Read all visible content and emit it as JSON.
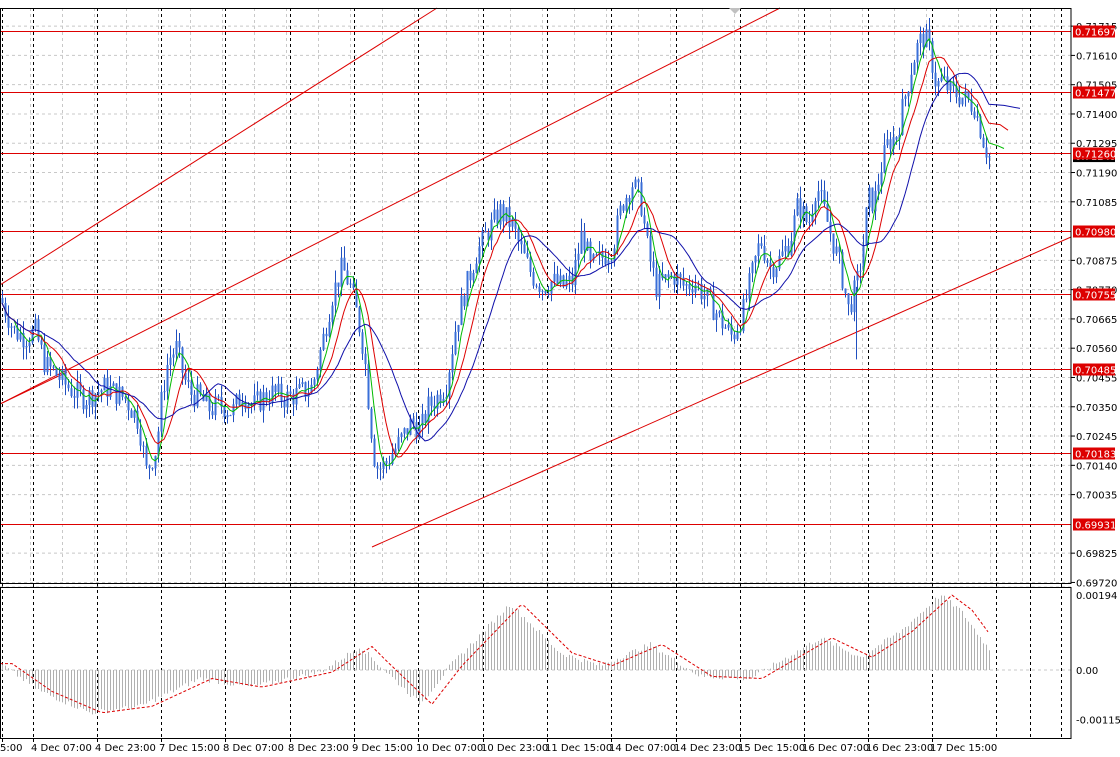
{
  "chart_data": [
    {
      "type": "candlestick",
      "title": "",
      "x_ticks": [
        "5:00",
        "4 Dec 07:00",
        "4 Dec 23:00",
        "7 Dec 15:00",
        "8 Dec 07:00",
        "8 Dec 23:00",
        "9 Dec 15:00",
        "10 Dec 07:00",
        "10 Dec 23:00",
        "11 Dec 15:00",
        "14 Dec 07:00",
        "14 Dec 23:00",
        "15 Dec 15:00",
        "16 Dec 07:00",
        "16 Dec 23:00",
        "17 Dec 15:00"
      ],
      "y_ticks": [
        "0.71715",
        "0.71610",
        "0.71505",
        "0.71400",
        "0.71295",
        "0.71190",
        "0.71085",
        "0.70875",
        "0.70770",
        "0.70665",
        "0.70560",
        "0.70455",
        "0.70350",
        "0.70245",
        "0.70140",
        "0.70035",
        "0.69825",
        "0.69720"
      ],
      "ylim": [
        0.6972,
        0.7179
      ],
      "current_price": "0.71249",
      "levels": [
        {
          "label": "0.71697",
          "value": 0.71697
        },
        {
          "label": "0.71477",
          "value": 0.71477
        },
        {
          "label": "0.71260",
          "value": 0.7126
        },
        {
          "label": "0.70980",
          "value": 0.7098
        },
        {
          "label": "0.70755",
          "value": 0.70755
        },
        {
          "label": "0.70485",
          "value": 0.70485
        },
        {
          "label": "0.70183",
          "value": 0.70183
        },
        {
          "label": "0.69931",
          "value": 0.69931
        }
      ],
      "close_path": [
        [
          0,
          0.7074
        ],
        [
          14,
          0.7062
        ],
        [
          25,
          0.706
        ],
        [
          35,
          0.7062
        ],
        [
          45,
          0.705
        ],
        [
          55,
          0.7047
        ],
        [
          65,
          0.7043
        ],
        [
          75,
          0.704
        ],
        [
          85,
          0.7038
        ],
        [
          95,
          0.704
        ],
        [
          105,
          0.7042
        ],
        [
          115,
          0.704
        ],
        [
          125,
          0.7038
        ],
        [
          138,
          0.703
        ],
        [
          146,
          0.7012
        ],
        [
          150,
          0.7015
        ],
        [
          156,
          0.702
        ],
        [
          162,
          0.704
        ],
        [
          168,
          0.7052
        ],
        [
          176,
          0.7056
        ],
        [
          184,
          0.7045
        ],
        [
          190,
          0.704
        ],
        [
          200,
          0.7038
        ],
        [
          210,
          0.7034
        ],
        [
          220,
          0.7036
        ],
        [
          232,
          0.7033
        ],
        [
          242,
          0.704
        ],
        [
          252,
          0.7035
        ],
        [
          262,
          0.7038
        ],
        [
          272,
          0.704
        ],
        [
          285,
          0.7038
        ],
        [
          300,
          0.704
        ],
        [
          312,
          0.7042
        ],
        [
          322,
          0.7058
        ],
        [
          332,
          0.7075
        ],
        [
          342,
          0.7085
        ],
        [
          350,
          0.7078
        ],
        [
          358,
          0.7066
        ],
        [
          364,
          0.7054
        ],
        [
          370,
          0.703
        ],
        [
          375,
          0.7014
        ],
        [
          380,
          0.7013
        ],
        [
          386,
          0.7015
        ],
        [
          395,
          0.702
        ],
        [
          404,
          0.7025
        ],
        [
          412,
          0.703
        ],
        [
          420,
          0.7026
        ],
        [
          428,
          0.7035
        ],
        [
          436,
          0.7038
        ],
        [
          446,
          0.7043
        ],
        [
          456,
          0.7065
        ],
        [
          466,
          0.7078
        ],
        [
          476,
          0.709
        ],
        [
          488,
          0.7098
        ],
        [
          500,
          0.7105
        ],
        [
          512,
          0.71
        ],
        [
          522,
          0.709
        ],
        [
          532,
          0.7082
        ],
        [
          542,
          0.7078
        ],
        [
          552,
          0.708
        ],
        [
          562,
          0.7078
        ],
        [
          572,
          0.708
        ],
        [
          582,
          0.7098
        ],
        [
          590,
          0.7085
        ],
        [
          600,
          0.7088
        ],
        [
          612,
          0.7092
        ],
        [
          622,
          0.7108
        ],
        [
          632,
          0.7115
        ],
        [
          640,
          0.711
        ],
        [
          648,
          0.709
        ],
        [
          656,
          0.7078
        ],
        [
          664,
          0.708
        ],
        [
          674,
          0.7082
        ],
        [
          684,
          0.7078
        ],
        [
          694,
          0.708
        ],
        [
          704,
          0.7075
        ],
        [
          714,
          0.707
        ],
        [
          722,
          0.7065
        ],
        [
          732,
          0.706
        ],
        [
          742,
          0.7068
        ],
        [
          752,
          0.7083
        ],
        [
          760,
          0.7095
        ],
        [
          770,
          0.7085
        ],
        [
          780,
          0.7088
        ],
        [
          790,
          0.7095
        ],
        [
          798,
          0.7108
        ],
        [
          808,
          0.71
        ],
        [
          816,
          0.7115
        ],
        [
          824,
          0.7105
        ],
        [
          832,
          0.7095
        ],
        [
          840,
          0.7085
        ],
        [
          848,
          0.707
        ],
        [
          856,
          0.7078
        ],
        [
          862,
          0.709
        ],
        [
          868,
          0.711
        ],
        [
          874,
          0.7108
        ],
        [
          880,
          0.712
        ],
        [
          888,
          0.713
        ],
        [
          896,
          0.7132
        ],
        [
          904,
          0.7145
        ],
        [
          912,
          0.7158
        ],
        [
          918,
          0.7165
        ],
        [
          924,
          0.7168
        ],
        [
          930,
          0.7162
        ],
        [
          936,
          0.715
        ],
        [
          942,
          0.7152
        ],
        [
          950,
          0.7148
        ],
        [
          958,
          0.7147
        ],
        [
          966,
          0.7145
        ],
        [
          974,
          0.7143
        ],
        [
          980,
          0.7135
        ],
        [
          985,
          0.7128
        ],
        [
          990,
          0.7124
        ]
      ],
      "indicator": {
        "ylim": [
          -0.00159,
          0.00194
        ],
        "y_ticks": [
          "0.00194",
          "0.00",
          "-0.001159"
        ],
        "path": [
          [
            0,
            0.00015
          ],
          [
            40,
            -0.0005
          ],
          [
            90,
            -0.001
          ],
          [
            140,
            -0.00085
          ],
          [
            200,
            -0.0002
          ],
          [
            250,
            -0.0004
          ],
          [
            320,
            -5e-05
          ],
          [
            360,
            0.00055
          ],
          [
            375,
            0.0002
          ],
          [
            420,
            -0.0008
          ],
          [
            450,
            0.0001
          ],
          [
            510,
            0.00155
          ],
          [
            560,
            0.0004
          ],
          [
            600,
            0.0001
          ],
          [
            650,
            0.0006
          ],
          [
            700,
            -0.00015
          ],
          [
            750,
            -0.0002
          ],
          [
            820,
            0.00075
          ],
          [
            860,
            0.0003
          ],
          [
            900,
            0.0009
          ],
          [
            940,
            0.00175
          ],
          [
            960,
            0.0014
          ],
          [
            990,
            0.00045
          ]
        ]
      }
    }
  ]
}
